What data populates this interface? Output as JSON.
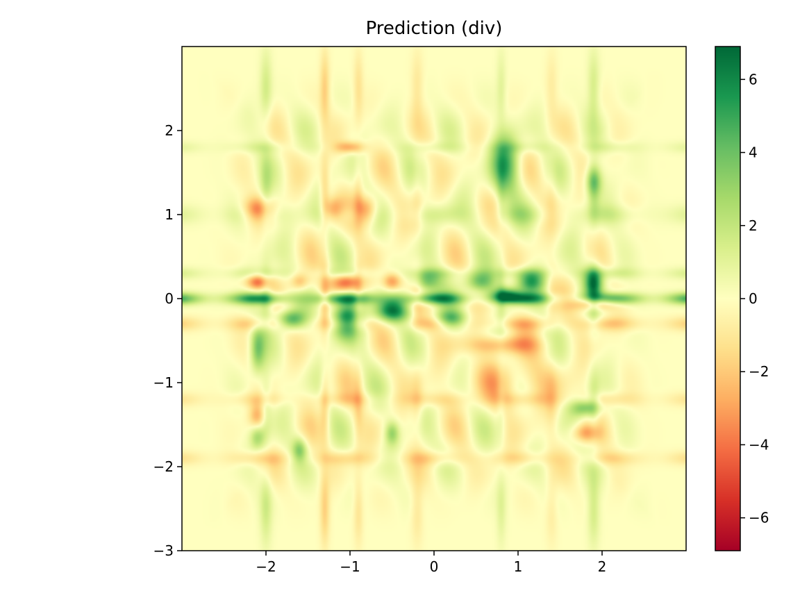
{
  "chart_data": {
    "type": "heatmap",
    "title": "Prediction (div)",
    "xlabel": "",
    "ylabel": "",
    "xlim": [
      -3,
      3
    ],
    "ylim": [
      -3,
      3
    ],
    "x_ticks": [
      -2,
      -1,
      0,
      1,
      2
    ],
    "y_ticks": [
      -3,
      -2,
      -1,
      0,
      1,
      2
    ],
    "x_tick_labels": [
      "−2",
      "−1",
      "0",
      "1",
      "2"
    ],
    "y_tick_labels": [
      "−3",
      "−2",
      "−1",
      "0",
      "1",
      "2"
    ],
    "colormap": "RdYlGn",
    "colorbar": {
      "vmin": -6.9,
      "vmax": 6.9,
      "ticks": [
        -6,
        -4,
        -2,
        0,
        2,
        4,
        6
      ],
      "tick_labels": [
        "−6",
        "−4",
        "−2",
        "0",
        "2",
        "4",
        "6"
      ]
    },
    "features": [
      {
        "kind": "hband",
        "y": 0.0,
        "w": 0.05,
        "a": 5.5
      },
      {
        "kind": "hband",
        "y": -0.3,
        "w": 0.06,
        "a": -2.0
      },
      {
        "kind": "hband",
        "y": 0.3,
        "w": 0.05,
        "a": 1.5
      },
      {
        "kind": "hband",
        "y": 1.0,
        "w": 0.08,
        "a": 1.2
      },
      {
        "kind": "hband",
        "y": 1.8,
        "w": 0.05,
        "a": 1.0
      },
      {
        "kind": "hband",
        "y": -1.2,
        "w": 0.06,
        "a": -1.3
      },
      {
        "kind": "hband",
        "y": -1.9,
        "w": 0.06,
        "a": -1.5
      },
      {
        "kind": "vband",
        "x": -1.3,
        "w": 0.04,
        "a": -1.8
      },
      {
        "kind": "vband",
        "x": -0.9,
        "w": 0.04,
        "a": -1.2
      },
      {
        "kind": "vband",
        "x": -0.2,
        "w": 0.05,
        "a": -1.0
      },
      {
        "kind": "vband",
        "x": -2.0,
        "w": 0.05,
        "a": 1.5
      },
      {
        "kind": "vband",
        "x": 1.9,
        "w": 0.05,
        "a": 1.5
      },
      {
        "kind": "vband",
        "x": 1.4,
        "w": 0.05,
        "a": -0.8
      },
      {
        "kind": "vband",
        "x": 0.8,
        "w": 0.04,
        "a": 1.0
      },
      {
        "kind": "blob",
        "x": -1.7,
        "y": -0.25,
        "sx": 0.12,
        "sy": 0.08,
        "a": 5.0
      },
      {
        "kind": "blob",
        "x": -1.05,
        "y": -0.25,
        "sx": 0.12,
        "sy": 0.15,
        "a": 6.5
      },
      {
        "kind": "blob",
        "x": -0.5,
        "y": -0.15,
        "sx": 0.14,
        "sy": 0.1,
        "a": 6.0
      },
      {
        "kind": "blob",
        "x": 0.2,
        "y": -0.25,
        "sx": 0.13,
        "sy": 0.08,
        "a": 4.5
      },
      {
        "kind": "blob",
        "x": -0.1,
        "y": 0.2,
        "sx": 0.12,
        "sy": 0.09,
        "a": 4.0
      },
      {
        "kind": "blob",
        "x": 0.55,
        "y": 0.2,
        "sx": 0.13,
        "sy": 0.09,
        "a": 4.0
      },
      {
        "kind": "blob",
        "x": 1.15,
        "y": 0.2,
        "sx": 0.12,
        "sy": 0.09,
        "a": 4.5
      },
      {
        "kind": "blob",
        "x": 1.9,
        "y": 0.2,
        "sx": 0.08,
        "sy": 0.12,
        "a": 5.0
      },
      {
        "kind": "blob",
        "x": 1.9,
        "y": -0.05,
        "sx": 0.16,
        "sy": 0.06,
        "a": -4.5
      },
      {
        "kind": "blob",
        "x": 0.85,
        "y": 0.05,
        "sx": 0.12,
        "sy": 0.06,
        "a": 4.5
      },
      {
        "kind": "blob",
        "x": -2.1,
        "y": 0.2,
        "sx": 0.1,
        "sy": 0.07,
        "a": -4.5
      },
      {
        "kind": "blob",
        "x": -1.6,
        "y": 0.2,
        "sx": 0.08,
        "sy": 0.08,
        "a": -3.0
      },
      {
        "kind": "blob",
        "x": -1.05,
        "y": 0.2,
        "sx": 0.12,
        "sy": 0.08,
        "a": -4.5
      },
      {
        "kind": "blob",
        "x": -0.5,
        "y": 0.2,
        "sx": 0.08,
        "sy": 0.08,
        "a": -4.0
      },
      {
        "kind": "blob",
        "x": -2.1,
        "y": 1.05,
        "sx": 0.12,
        "sy": 0.1,
        "a": -4.0
      },
      {
        "kind": "blob",
        "x": -0.8,
        "y": 1.05,
        "sx": 0.1,
        "sy": 0.12,
        "a": -4.0
      },
      {
        "kind": "blob",
        "x": -1.2,
        "y": 1.05,
        "sx": 0.08,
        "sy": 0.1,
        "a": -3.0
      },
      {
        "kind": "blob",
        "x": -1.0,
        "y": 1.8,
        "sx": 0.14,
        "sy": 0.05,
        "a": -4.0
      },
      {
        "kind": "blob",
        "x": 0.85,
        "y": 1.6,
        "sx": 0.12,
        "sy": 0.25,
        "a": 4.5
      },
      {
        "kind": "blob",
        "x": 1.9,
        "y": 1.4,
        "sx": 0.07,
        "sy": 0.12,
        "a": 3.5
      },
      {
        "kind": "blob",
        "x": -2.1,
        "y": -0.6,
        "sx": 0.06,
        "sy": 0.2,
        "a": 3.5
      },
      {
        "kind": "blob",
        "x": -2.1,
        "y": -1.4,
        "sx": 0.07,
        "sy": 0.1,
        "a": -2.5
      },
      {
        "kind": "blob",
        "x": 0.8,
        "y": -0.55,
        "sx": 0.3,
        "sy": 0.08,
        "a": -3.0
      },
      {
        "kind": "blob",
        "x": 0.9,
        "y": -1.0,
        "sx": 0.4,
        "sy": 0.2,
        "a": -1.8
      },
      {
        "kind": "blob",
        "x": 1.8,
        "y": -1.3,
        "sx": 0.12,
        "sy": 0.07,
        "a": 3.5
      },
      {
        "kind": "blob",
        "x": -1.6,
        "y": -1.8,
        "sx": 0.06,
        "sy": 0.1,
        "a": 3.0
      },
      {
        "kind": "blob",
        "x": -0.5,
        "y": -1.6,
        "sx": 0.06,
        "sy": 0.1,
        "a": 3.0
      },
      {
        "kind": "blob",
        "x": -2.1,
        "y": -1.65,
        "sx": 0.06,
        "sy": 0.1,
        "a": 2.5
      },
      {
        "kind": "blob",
        "x": 1.8,
        "y": -1.6,
        "sx": 0.12,
        "sy": 0.08,
        "a": -3.0
      }
    ]
  }
}
